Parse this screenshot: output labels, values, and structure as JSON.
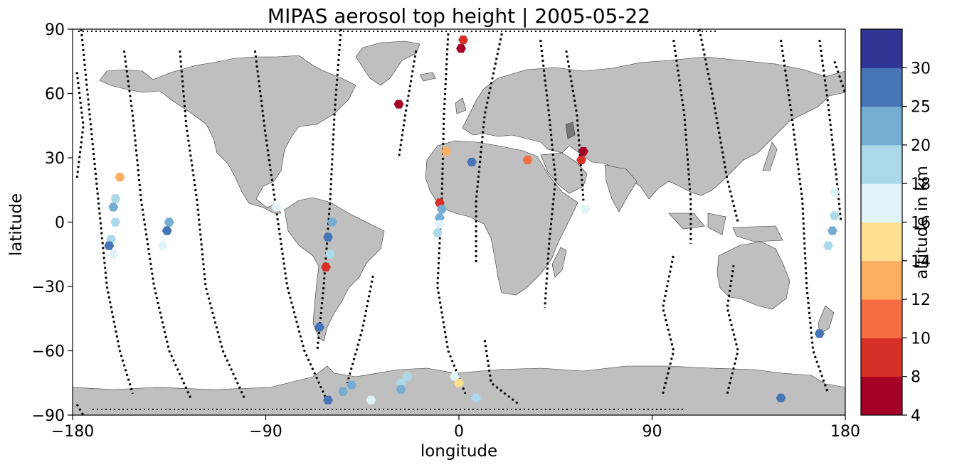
{
  "chart_data": {
    "type": "scatter",
    "title": "MIPAS aerosol top height | 2005-05-22",
    "xlabel": "longitude",
    "ylabel": "latitude",
    "xlim": [
      -180,
      180
    ],
    "ylim": [
      -90,
      90
    ],
    "xticks": [
      -180,
      -90,
      0,
      90,
      180
    ],
    "yticks": [
      -90,
      -60,
      -30,
      0,
      30,
      60,
      90
    ],
    "xtick_labels": [
      "−180",
      "−90",
      "0",
      "90",
      "180"
    ],
    "ytick_labels": [
      "−90",
      "−60",
      "−30",
      "0",
      "30",
      "60",
      "90"
    ],
    "grid": false,
    "basemap": "world land masses in gray",
    "land_color": "#bfbfbf",
    "colorbar": {
      "label": "altitude in km",
      "bounds": [
        4,
        8,
        10,
        12,
        14,
        16,
        18,
        20,
        25,
        30
      ],
      "tick_labels": [
        "4",
        "8",
        "10",
        "12",
        "14",
        "16",
        "18",
        "20",
        "25",
        "30"
      ],
      "colors": [
        "#a50026",
        "#d73027",
        "#f46d43",
        "#fdae61",
        "#fee090",
        "#e0f3f8",
        "#abd9e9",
        "#74add1",
        "#4575b4",
        "#313695"
      ]
    },
    "detections": [
      {
        "lon": 2,
        "lat": 85,
        "alt": 9
      },
      {
        "lon": 1,
        "lat": 81,
        "alt": 6
      },
      {
        "lon": -28,
        "lat": 55,
        "alt": 6
      },
      {
        "lon": -6,
        "lat": 33,
        "alt": 13
      },
      {
        "lon": 58,
        "lat": 33,
        "alt": 6
      },
      {
        "lon": 57,
        "lat": 29,
        "alt": 8
      },
      {
        "lon": 32,
        "lat": 29,
        "alt": 11
      },
      {
        "lon": 6,
        "lat": 28,
        "alt": 27
      },
      {
        "lon": -158,
        "lat": 21,
        "alt": 13
      },
      {
        "lon": -160,
        "lat": 11,
        "alt": 19
      },
      {
        "lon": -161,
        "lat": 7,
        "alt": 22
      },
      {
        "lon": -160,
        "lat": 0,
        "alt": 19
      },
      {
        "lon": -162,
        "lat": -8,
        "alt": 18
      },
      {
        "lon": -163,
        "lat": -11,
        "alt": 27
      },
      {
        "lon": -161,
        "lat": -15,
        "alt": 17
      },
      {
        "lon": -135,
        "lat": 0,
        "alt": 22
      },
      {
        "lon": -136,
        "lat": -4,
        "alt": 27
      },
      {
        "lon": -138,
        "lat": -11,
        "alt": 17
      },
      {
        "lon": -85,
        "lat": 7,
        "alt": 17
      },
      {
        "lon": -59,
        "lat": 0,
        "alt": 22
      },
      {
        "lon": -61,
        "lat": -7,
        "alt": 27
      },
      {
        "lon": -60,
        "lat": -15,
        "alt": 19
      },
      {
        "lon": -62,
        "lat": -21,
        "alt": 9
      },
      {
        "lon": -65,
        "lat": -49,
        "alt": 27
      },
      {
        "lon": -9,
        "lat": 9,
        "alt": 9
      },
      {
        "lon": -8,
        "lat": 6,
        "alt": 22
      },
      {
        "lon": -9,
        "lat": 2,
        "alt": 22
      },
      {
        "lon": -9,
        "lat": -1,
        "alt": 17
      },
      {
        "lon": -10,
        "lat": -5,
        "alt": 19
      },
      {
        "lon": 59,
        "lat": 6,
        "alt": 17
      },
      {
        "lon": 175,
        "lat": 14,
        "alt": 17
      },
      {
        "lon": 175,
        "lat": 3,
        "alt": 19
      },
      {
        "lon": 174,
        "lat": -4,
        "alt": 22
      },
      {
        "lon": 172,
        "lat": -11,
        "alt": 19
      },
      {
        "lon": 168,
        "lat": -52,
        "alt": 27
      },
      {
        "lon": 150,
        "lat": -82,
        "alt": 27
      },
      {
        "lon": -24,
        "lat": -72,
        "alt": 19
      },
      {
        "lon": -27,
        "lat": -75,
        "alt": 19
      },
      {
        "lon": -27,
        "lat": -78,
        "alt": 22
      },
      {
        "lon": -50,
        "lat": -76,
        "alt": 22
      },
      {
        "lon": -54,
        "lat": -79,
        "alt": 22
      },
      {
        "lon": -61,
        "lat": -83,
        "alt": 27
      },
      {
        "lon": -41,
        "lat": -83,
        "alt": 17
      },
      {
        "lon": -2,
        "lat": -72,
        "alt": 17
      },
      {
        "lon": 0,
        "lat": -75,
        "alt": 15
      },
      {
        "lon": 8,
        "lat": -82,
        "alt": 19
      }
    ]
  }
}
